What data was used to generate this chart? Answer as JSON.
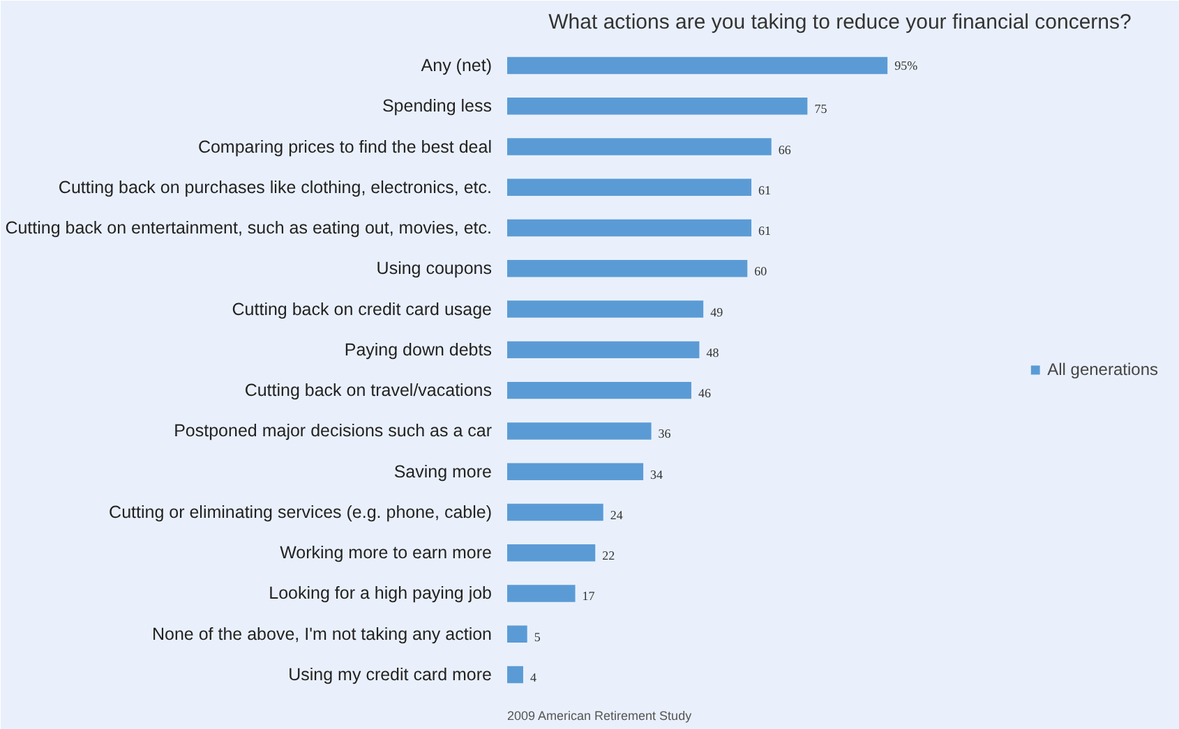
{
  "chart_data": {
    "type": "bar",
    "orientation": "horizontal",
    "title": "What actions are you taking to reduce your financial concerns?",
    "categories": [
      "Any (net)",
      "Spending less",
      "Comparing prices to find the best deal",
      "Cutting back on purchases like clothing, electronics, etc.",
      "Cutting back on entertainment, such as eating out, movies, etc.",
      "Using coupons",
      "Cutting back on credit card usage",
      "Paying down debts",
      "Cutting back on travel/vacations",
      "Postponed major decisions such as a car",
      "Saving more",
      "Cutting or eliminating services (e.g. phone, cable)",
      "Working more to earn more",
      "Looking for a high paying job",
      "None of the above, I'm not taking any action",
      "Using my credit card more"
    ],
    "series": [
      {
        "name": "All generations",
        "color": "#5b9bd5",
        "values": [
          95,
          75,
          66,
          61,
          61,
          60,
          49,
          48,
          46,
          36,
          34,
          24,
          22,
          17,
          5,
          4
        ],
        "value_labels": [
          "95%",
          "75",
          "66",
          "61",
          "61",
          "60",
          "49",
          "48",
          "46",
          "36",
          "34",
          "24",
          "22",
          "17",
          "5",
          "4"
        ]
      }
    ],
    "legend": "right",
    "grid": false,
    "annotations": [
      "2009 American Retirement Study"
    ]
  }
}
